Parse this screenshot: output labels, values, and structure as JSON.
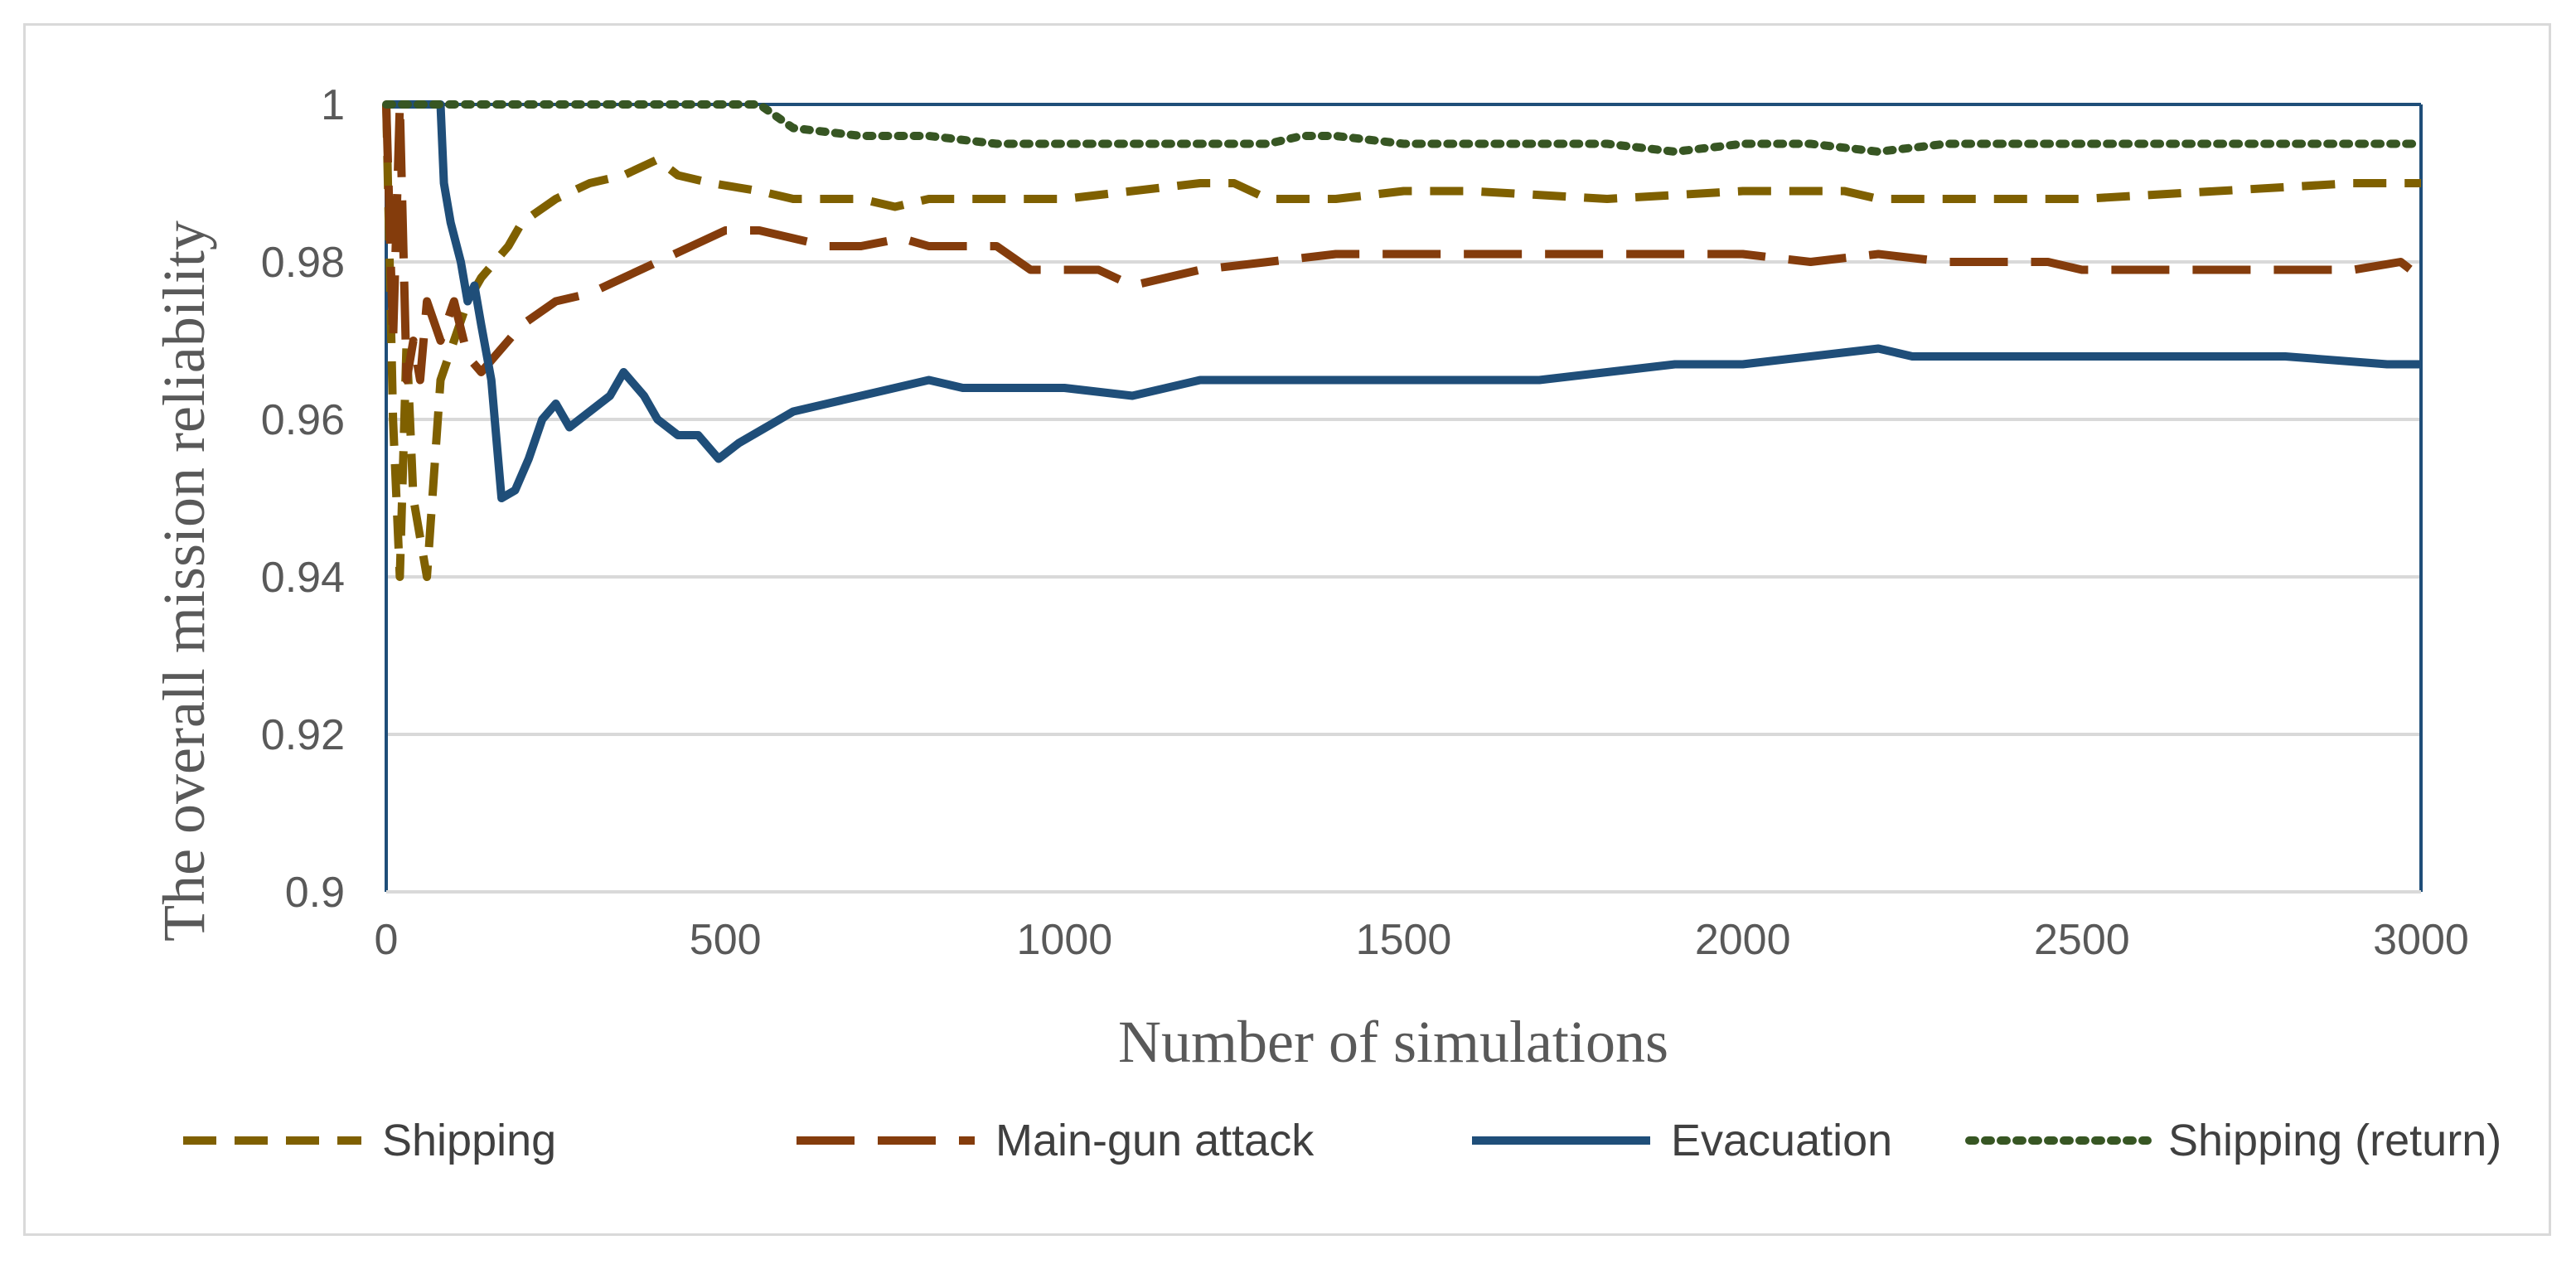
{
  "chart_data": {
    "type": "line",
    "title": "",
    "xlabel": "Number of simulations",
    "ylabel": "The overall mission reliability",
    "xlim": [
      0,
      3000
    ],
    "ylim": [
      0.9,
      1
    ],
    "x_ticks": [
      "0",
      "500",
      "1000",
      "1500",
      "2000",
      "2500",
      "3000"
    ],
    "y_ticks": [
      "0.9",
      "0.92",
      "0.94",
      "0.96",
      "0.98",
      "1"
    ],
    "grid": "horizontal",
    "legend_position": "bottom",
    "series": [
      {
        "name": "Shipping",
        "color": "#7f6000",
        "style": "dashed",
        "points": [
          [
            0,
            1
          ],
          [
            10,
            0.96
          ],
          [
            20,
            0.94
          ],
          [
            30,
            0.97
          ],
          [
            40,
            0.95
          ],
          [
            60,
            0.94
          ],
          [
            80,
            0.965
          ],
          [
            100,
            0.97
          ],
          [
            120,
            0.975
          ],
          [
            140,
            0.978
          ],
          [
            160,
            0.98
          ],
          [
            180,
            0.982
          ],
          [
            200,
            0.985
          ],
          [
            250,
            0.988
          ],
          [
            300,
            0.99
          ],
          [
            350,
            0.991
          ],
          [
            400,
            0.993
          ],
          [
            430,
            0.991
          ],
          [
            480,
            0.99
          ],
          [
            550,
            0.989
          ],
          [
            600,
            0.988
          ],
          [
            700,
            0.988
          ],
          [
            750,
            0.987
          ],
          [
            800,
            0.988
          ],
          [
            900,
            0.988
          ],
          [
            1000,
            0.988
          ],
          [
            1100,
            0.989
          ],
          [
            1200,
            0.99
          ],
          [
            1250,
            0.99
          ],
          [
            1300,
            0.988
          ],
          [
            1400,
            0.988
          ],
          [
            1500,
            0.989
          ],
          [
            1600,
            0.989
          ],
          [
            1800,
            0.988
          ],
          [
            2000,
            0.989
          ],
          [
            2150,
            0.989
          ],
          [
            2200,
            0.988
          ],
          [
            2300,
            0.988
          ],
          [
            2500,
            0.988
          ],
          [
            2700,
            0.989
          ],
          [
            2900,
            0.99
          ],
          [
            3000,
            0.99
          ]
        ]
      },
      {
        "name": "Main-gun attack",
        "color": "#843c0c",
        "style": "long-dashed",
        "points": [
          [
            0,
            1
          ],
          [
            10,
            0.97
          ],
          [
            20,
            1
          ],
          [
            30,
            0.965
          ],
          [
            40,
            0.97
          ],
          [
            50,
            0.965
          ],
          [
            60,
            0.975
          ],
          [
            80,
            0.97
          ],
          [
            100,
            0.975
          ],
          [
            120,
            0.968
          ],
          [
            140,
            0.966
          ],
          [
            160,
            0.968
          ],
          [
            180,
            0.97
          ],
          [
            200,
            0.972
          ],
          [
            250,
            0.975
          ],
          [
            300,
            0.976
          ],
          [
            350,
            0.978
          ],
          [
            400,
            0.98
          ],
          [
            450,
            0.982
          ],
          [
            500,
            0.984
          ],
          [
            550,
            0.984
          ],
          [
            600,
            0.983
          ],
          [
            650,
            0.982
          ],
          [
            700,
            0.982
          ],
          [
            760,
            0.983
          ],
          [
            800,
            0.982
          ],
          [
            900,
            0.982
          ],
          [
            950,
            0.979
          ],
          [
            1000,
            0.979
          ],
          [
            1050,
            0.979
          ],
          [
            1100,
            0.977
          ],
          [
            1200,
            0.979
          ],
          [
            1300,
            0.98
          ],
          [
            1400,
            0.981
          ],
          [
            1500,
            0.981
          ],
          [
            1600,
            0.981
          ],
          [
            1800,
            0.981
          ],
          [
            2000,
            0.981
          ],
          [
            2100,
            0.98
          ],
          [
            2200,
            0.981
          ],
          [
            2300,
            0.98
          ],
          [
            2450,
            0.98
          ],
          [
            2500,
            0.979
          ],
          [
            2700,
            0.979
          ],
          [
            2900,
            0.979
          ],
          [
            2970,
            0.98
          ],
          [
            3000,
            0.978
          ]
        ]
      },
      {
        "name": "Evacuation",
        "color": "#1f4e79",
        "style": "solid",
        "points": [
          [
            0,
            1
          ],
          [
            80,
            1
          ],
          [
            85,
            0.99
          ],
          [
            95,
            0.985
          ],
          [
            110,
            0.98
          ],
          [
            120,
            0.975
          ],
          [
            130,
            0.977
          ],
          [
            140,
            0.972
          ],
          [
            155,
            0.965
          ],
          [
            170,
            0.95
          ],
          [
            190,
            0.951
          ],
          [
            210,
            0.955
          ],
          [
            230,
            0.96
          ],
          [
            250,
            0.962
          ],
          [
            270,
            0.959
          ],
          [
            300,
            0.961
          ],
          [
            330,
            0.963
          ],
          [
            350,
            0.966
          ],
          [
            380,
            0.963
          ],
          [
            400,
            0.96
          ],
          [
            430,
            0.958
          ],
          [
            460,
            0.958
          ],
          [
            490,
            0.955
          ],
          [
            520,
            0.957
          ],
          [
            560,
            0.959
          ],
          [
            600,
            0.961
          ],
          [
            650,
            0.962
          ],
          [
            700,
            0.963
          ],
          [
            750,
            0.964
          ],
          [
            800,
            0.965
          ],
          [
            850,
            0.964
          ],
          [
            900,
            0.964
          ],
          [
            1000,
            0.964
          ],
          [
            1100,
            0.963
          ],
          [
            1200,
            0.965
          ],
          [
            1300,
            0.965
          ],
          [
            1400,
            0.965
          ],
          [
            1500,
            0.965
          ],
          [
            1600,
            0.965
          ],
          [
            1700,
            0.965
          ],
          [
            1800,
            0.966
          ],
          [
            1900,
            0.967
          ],
          [
            2000,
            0.967
          ],
          [
            2100,
            0.968
          ],
          [
            2200,
            0.969
          ],
          [
            2250,
            0.968
          ],
          [
            2400,
            0.968
          ],
          [
            2600,
            0.968
          ],
          [
            2800,
            0.968
          ],
          [
            2950,
            0.967
          ],
          [
            3000,
            0.967
          ]
        ]
      },
      {
        "name": "Shipping (return)",
        "color": "#375623",
        "style": "dotted",
        "points": [
          [
            0,
            1
          ],
          [
            550,
            1
          ],
          [
            600,
            0.997
          ],
          [
            700,
            0.996
          ],
          [
            800,
            0.996
          ],
          [
            900,
            0.995
          ],
          [
            1000,
            0.995
          ],
          [
            1100,
            0.995
          ],
          [
            1200,
            0.995
          ],
          [
            1300,
            0.995
          ],
          [
            1350,
            0.996
          ],
          [
            1400,
            0.996
          ],
          [
            1500,
            0.995
          ],
          [
            1600,
            0.995
          ],
          [
            1700,
            0.995
          ],
          [
            1800,
            0.995
          ],
          [
            1900,
            0.994
          ],
          [
            2000,
            0.995
          ],
          [
            2100,
            0.995
          ],
          [
            2200,
            0.994
          ],
          [
            2300,
            0.995
          ],
          [
            2400,
            0.995
          ],
          [
            2500,
            0.995
          ],
          [
            2600,
            0.995
          ],
          [
            2800,
            0.995
          ],
          [
            3000,
            0.995
          ]
        ]
      }
    ]
  }
}
